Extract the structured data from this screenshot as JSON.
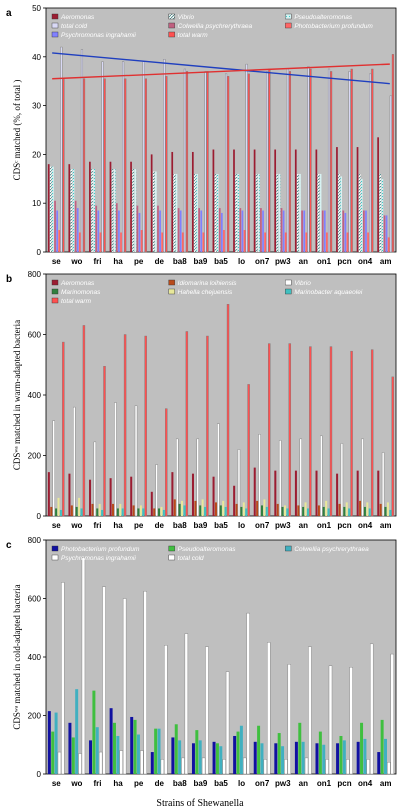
{
  "x_axis_title": "Strains of Shewanella",
  "colors": {
    "plot_bg": "#bfbfbf",
    "aeromonas": "#9b1c31",
    "vibrio_hatch": "#3a7d7d",
    "pseudoalteromonas": "#3ec7c7",
    "total_cold": "#d9d9f5",
    "colwellia": "#c06080",
    "photobacterium": "#ff6666",
    "psychromonas": "#8080ff",
    "total_warm": "#ff5050",
    "idiomarina": "#b84a1a",
    "marinomonas": "#2f7f3f",
    "hahella": "#e8e89a",
    "marinobacter": "#40c0c0",
    "vibrio_b": "#ffffff",
    "photobacterium_c": "#1010a0",
    "pseudoalteromonas_c": "#3fbf3f",
    "colwellia_c": "#40b0c0",
    "psychromonas_c": "#ffffff",
    "total_cold_c": "#ffffff",
    "blue_line": "#1f3fbf",
    "red_line": "#e03030"
  },
  "chart_data": [
    {
      "panel_label": "a",
      "type": "bar",
      "ylabel": "CDSᶜ matched (%, of total )",
      "ylim": [
        0,
        50
      ],
      "yticks": [
        0,
        10,
        20,
        30,
        40,
        50
      ],
      "categories": [
        "se",
        "wo",
        "fri",
        "ha",
        "pe",
        "de",
        "ba8",
        "ba9",
        "ba5",
        "lo",
        "on7",
        "pw3",
        "an",
        "on1",
        "pcn",
        "on4",
        "am"
      ],
      "legend": [
        "Aeromonas",
        "Vibrio",
        "Pseudoalteromonas",
        "total cold",
        "Colwellia psychrerythraea",
        "Photobacterium profundum",
        "Psychromonas ingrahamii",
        "total warm"
      ],
      "series": [
        {
          "name": "Aeromonas",
          "color_key": "aeromonas",
          "values": [
            18,
            18,
            18.5,
            18.5,
            18.5,
            20,
            20.5,
            20.5,
            21,
            21,
            21,
            21,
            21,
            21,
            21.5,
            21.5,
            23.5
          ]
        },
        {
          "name": "Vibrio",
          "color_key": "vibrio_hatch",
          "values": [
            17.5,
            17,
            17,
            17,
            17,
            16.5,
            16,
            16,
            16,
            16,
            16,
            16,
            16,
            16,
            16,
            16,
            16
          ]
        },
        {
          "name": "Pseudoalteromonas",
          "color_key": "pseudoalteromonas",
          "values": [
            17.5,
            17,
            17,
            17,
            17,
            16.5,
            16,
            16,
            16,
            16,
            16,
            16,
            16,
            16,
            15.5,
            15,
            15
          ]
        },
        {
          "name": "Colwellia psychrerythraea",
          "color_key": "colwellia",
          "values": [
            10.5,
            10.5,
            9.5,
            10,
            9.5,
            9.5,
            9,
            9,
            9,
            9,
            9,
            9,
            8.5,
            8.5,
            8.5,
            8.5,
            7.5
          ]
        },
        {
          "name": "Psychromonas ingrahamii",
          "color_key": "psychromonas",
          "values": [
            8.5,
            9,
            8.5,
            8.5,
            8,
            8.5,
            8.5,
            8.5,
            8,
            8.5,
            8.5,
            8.5,
            8.5,
            8.5,
            8,
            8.5,
            7.5
          ]
        },
        {
          "name": "Photobacterium profundum",
          "color_key": "photobacterium",
          "values": [
            4.5,
            4,
            4,
            4,
            4.5,
            4,
            4,
            4,
            4.5,
            4.5,
            4,
            4,
            4,
            4,
            4,
            4,
            3
          ]
        },
        {
          "name": "total cold",
          "color_key": "total_cold",
          "values": [
            42,
            41.5,
            39,
            39,
            39,
            39.5,
            37.5,
            37,
            36.5,
            38.5,
            37,
            37.5,
            38,
            37.5,
            37,
            36.5,
            32
          ]
        },
        {
          "name": "total warm",
          "color_key": "total_warm",
          "values": [
            35.5,
            35.5,
            35.5,
            35.5,
            35.5,
            36,
            37,
            37,
            36,
            36.5,
            37.5,
            37,
            37.5,
            37,
            37.5,
            37.5,
            40.5
          ]
        }
      ],
      "trend_lines": [
        {
          "color_key": "blue_line",
          "from": 40.8,
          "to": 34.5
        },
        {
          "color_key": "red_line",
          "from": 35.5,
          "to": 38.5
        }
      ]
    },
    {
      "panel_label": "b",
      "type": "bar",
      "ylabel": "CDSʷᵃ matched in warm-adapted bacteria",
      "ylim": [
        0,
        800
      ],
      "yticks": [
        0,
        200,
        400,
        600,
        800
      ],
      "categories": [
        "se",
        "wo",
        "fri",
        "ha",
        "pe",
        "de",
        "ba8",
        "ba9",
        "ba5",
        "lo",
        "on7",
        "pw3",
        "an",
        "on1",
        "pcn",
        "on4",
        "am"
      ],
      "legend": [
        "Aeromonas",
        "Idiomarina loihiensis",
        "Vibrio",
        "Marinomonas",
        "Hahella chejuensis",
        "Marinobacter aquaeolei",
        "total warm"
      ],
      "series": [
        {
          "name": "Aeromonas",
          "color_key": "aeromonas",
          "values": [
            145,
            140,
            120,
            125,
            130,
            80,
            145,
            140,
            130,
            100,
            160,
            150,
            150,
            150,
            140,
            150,
            150
          ]
        },
        {
          "name": "Idiomarina loihiensis",
          "color_key": "idiomarina",
          "values": [
            30,
            35,
            40,
            40,
            35,
            25,
            55,
            50,
            45,
            40,
            50,
            40,
            35,
            35,
            40,
            50,
            40
          ]
        },
        {
          "name": "Vibrio",
          "color_key": "vibrio_b",
          "values": [
            315,
            360,
            245,
            375,
            365,
            170,
            255,
            255,
            305,
            220,
            270,
            250,
            255,
            265,
            240,
            255,
            210
          ]
        },
        {
          "name": "Marinomonas",
          "color_key": "marinomonas",
          "values": [
            25,
            30,
            25,
            25,
            25,
            25,
            40,
            35,
            35,
            30,
            35,
            30,
            30,
            30,
            30,
            30,
            30
          ]
        },
        {
          "name": "Hahella chejuensis",
          "color_key": "hahella",
          "values": [
            60,
            60,
            40,
            40,
            35,
            30,
            50,
            55,
            50,
            45,
            55,
            35,
            45,
            50,
            45,
            45,
            45
          ]
        },
        {
          "name": "Marinobacter aquaeolei",
          "color_key": "marinobacter",
          "values": [
            20,
            25,
            20,
            25,
            25,
            20,
            35,
            30,
            30,
            25,
            30,
            25,
            25,
            25,
            25,
            25,
            20
          ]
        },
        {
          "name": "total warm",
          "color_key": "total_warm",
          "values": [
            575,
            630,
            495,
            600,
            595,
            355,
            610,
            595,
            700,
            435,
            570,
            570,
            560,
            560,
            545,
            550,
            460
          ]
        }
      ]
    },
    {
      "panel_label": "c",
      "type": "bar",
      "ylabel": "CDSʷᵃ matched in cold-adapted bacteria",
      "ylim": [
        0,
        800
      ],
      "yticks": [
        0,
        200,
        400,
        600,
        800
      ],
      "categories": [
        "se",
        "wo",
        "fri",
        "ha",
        "pe",
        "de",
        "ba8",
        "ba9",
        "ba5",
        "lo",
        "on7",
        "pw3",
        "an",
        "on1",
        "pcn",
        "on4",
        "am"
      ],
      "legend": [
        "Photobacterium profundum",
        "Pseudoalteromonas",
        "Colwellia psychrerythraea",
        "Psychromonas ingrahamii",
        "total cold"
      ],
      "series": [
        {
          "name": "Photobacterium profundum",
          "color_key": "photobacterium_c",
          "values": [
            215,
            175,
            115,
            225,
            195,
            75,
            125,
            105,
            110,
            130,
            110,
            105,
            110,
            105,
            105,
            110,
            75
          ]
        },
        {
          "name": "Pseudoalteromonas",
          "color_key": "pseudoalteromonas_c",
          "values": [
            145,
            125,
            285,
            175,
            185,
            155,
            170,
            150,
            105,
            145,
            165,
            140,
            175,
            145,
            130,
            175,
            185
          ]
        },
        {
          "name": "Colwellia psychrerythraea",
          "color_key": "colwellia_c",
          "values": [
            210,
            290,
            160,
            130,
            135,
            155,
            115,
            115,
            95,
            165,
            105,
            95,
            110,
            100,
            115,
            120,
            120
          ]
        },
        {
          "name": "Psychromonas ingrahamii",
          "color_key": "psychromonas_c",
          "values": [
            75,
            70,
            75,
            80,
            80,
            50,
            55,
            55,
            50,
            55,
            50,
            50,
            55,
            50,
            50,
            50,
            40
          ]
        },
        {
          "name": "total cold",
          "color_key": "total_cold_c",
          "values": [
            655,
            740,
            640,
            600,
            625,
            440,
            480,
            435,
            350,
            550,
            450,
            375,
            435,
            370,
            365,
            445,
            410
          ]
        }
      ]
    }
  ]
}
